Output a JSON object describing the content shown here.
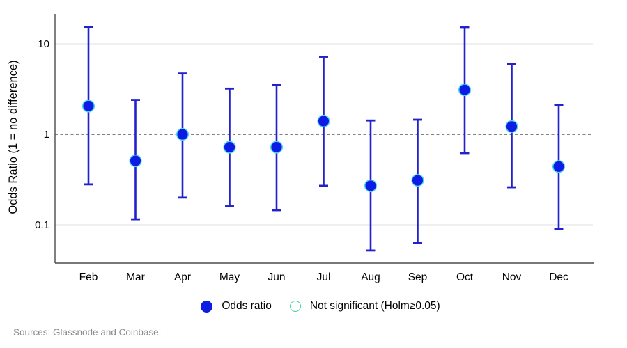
{
  "page": {
    "background": "#ffffff"
  },
  "chart_data": {
    "type": "scatter",
    "subtype": "dot-with-error-bars",
    "title": "",
    "xlabel": "",
    "ylabel": "Odds Ratio (1 = no difference)",
    "yscale": "log",
    "categories": [
      "Feb",
      "Mar",
      "Apr",
      "May",
      "Jun",
      "Jul",
      "Aug",
      "Sep",
      "Oct",
      "Nov",
      "Dec"
    ],
    "series": [
      {
        "name": "Odds ratio",
        "values": [
          2.05,
          0.51,
          1.0,
          0.72,
          0.72,
          1.4,
          0.27,
          0.31,
          3.1,
          1.22,
          0.44
        ],
        "ci_low": [
          0.28,
          0.115,
          0.2,
          0.16,
          0.145,
          0.27,
          0.052,
          0.063,
          0.62,
          0.26,
          0.09
        ],
        "ci_high": [
          15.4,
          2.4,
          4.7,
          3.2,
          3.5,
          7.2,
          1.42,
          1.45,
          15.3,
          6.0,
          2.1
        ]
      }
    ],
    "yticks": [
      10,
      1,
      0.1
    ],
    "ytick_labels": [
      "10",
      "1",
      "0.1"
    ],
    "ylim": [
      0.045,
      21
    ],
    "reference_line": {
      "value": 1,
      "style": "dashed",
      "color": "#000000"
    },
    "grid": "horizontal-major",
    "legend_position": "bottom",
    "colors": {
      "marker_fill": "#0d1be4",
      "marker_edge": "#4fd5e9",
      "error_bar": "#2121ce",
      "grid": "#e7e7e7",
      "axis": "#4a4a4a"
    }
  },
  "legend": {
    "items": [
      {
        "label": "Odds ratio",
        "marker": "filled-circle",
        "color": "#0d1be4"
      },
      {
        "label": "Not significant (Holm≥0.05)",
        "marker": "open-circle",
        "color": "#3fcfa4"
      }
    ]
  },
  "footer": {
    "source": "Sources: Glassnode and Coinbase."
  }
}
